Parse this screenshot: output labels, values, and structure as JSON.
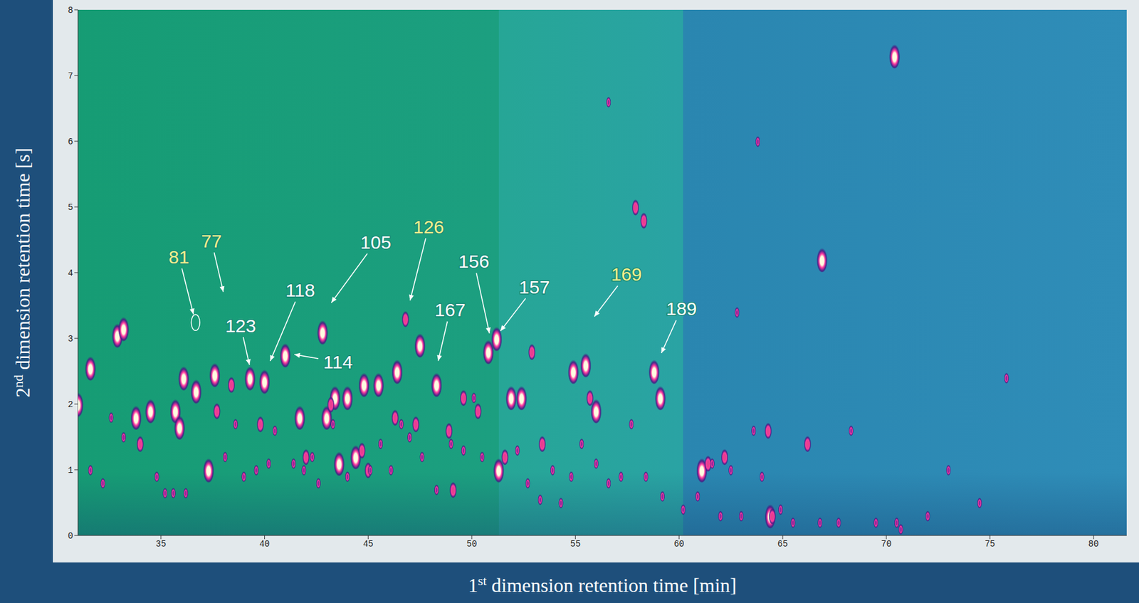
{
  "chart_data": {
    "type": "scatter",
    "x_label": "1st dimension retention time [min]",
    "y_label": "2nd dimension retention time [s]",
    "xlim": [
      31,
      81.6
    ],
    "xticks": [
      35,
      40,
      45,
      50,
      55,
      60,
      65,
      70,
      75,
      80
    ],
    "ylim": [
      0,
      8
    ],
    "yticks": [
      0,
      1,
      2,
      3,
      4,
      5,
      6,
      7,
      8
    ],
    "grid": false,
    "series": [
      {
        "color": "#fffbe0",
        "x": [
          31.0,
          31.6,
          32.9,
          33.2,
          33.8,
          34.5,
          35.7,
          35.9,
          36.1,
          36.7,
          37.3,
          37.6,
          39.3,
          40.0,
          41.0,
          41.7,
          42.8,
          43.0,
          43.4,
          44.0,
          44.8,
          43.6,
          44.4,
          45.5,
          46.4,
          47.5,
          48.3,
          50.8,
          51.2,
          51.3,
          51.9,
          52.4,
          54.9,
          55.5,
          56.0,
          58.8,
          59.1,
          61.1,
          64.4,
          66.9,
          70.4
        ],
        "y": [
          2.0,
          2.55,
          3.05,
          3.15,
          1.8,
          1.9,
          1.9,
          1.65,
          2.4,
          2.2,
          1.0,
          2.45,
          2.4,
          2.35,
          2.75,
          1.8,
          3.1,
          1.8,
          2.1,
          2.1,
          2.3,
          1.1,
          1.2,
          2.3,
          2.5,
          2.9,
          2.3,
          2.8,
          3.0,
          1.0,
          2.1,
          2.1,
          2.5,
          2.6,
          1.9,
          2.5,
          2.1,
          1.0,
          0.3,
          4.2,
          7.3
        ]
      },
      {
        "color": "#e8408f",
        "x": [
          34.0,
          37.7,
          38.4,
          39.8,
          42.0,
          43.2,
          44.7,
          46.3,
          47.3,
          48.9,
          49.6,
          50.3,
          51.6,
          52.9,
          53.4,
          55.7,
          57.9,
          58.3,
          61.4,
          62.2,
          64.3,
          64.5,
          66.2,
          49.1,
          45.0,
          46.8
        ],
        "y": [
          1.4,
          1.9,
          2.3,
          1.7,
          1.2,
          2.0,
          1.3,
          1.8,
          1.7,
          1.6,
          2.1,
          1.9,
          1.2,
          2.8,
          1.4,
          2.1,
          5.0,
          4.8,
          1.1,
          1.2,
          1.6,
          0.3,
          1.4,
          0.7,
          1.0,
          3.3
        ]
      },
      {
        "color": "#9a2a9a",
        "x": [
          31.6,
          32.2,
          32.6,
          33.2,
          34.8,
          35.2,
          35.6,
          36.2,
          38.1,
          38.6,
          39.0,
          39.6,
          40.2,
          40.5,
          41.4,
          41.9,
          42.3,
          42.6,
          43.3,
          44.0,
          45.1,
          45.6,
          46.1,
          46.6,
          47.0,
          47.6,
          48.3,
          49.0,
          49.6,
          50.1,
          50.5,
          52.2,
          52.7,
          53.3,
          53.9,
          54.3,
          54.8,
          55.3,
          56.0,
          56.6,
          57.2,
          57.7,
          58.4,
          59.2,
          60.2,
          60.9,
          61.6,
          62.0,
          62.5,
          63.0,
          63.6,
          64.0,
          64.9,
          65.5,
          66.8,
          67.7,
          68.3,
          69.5,
          70.5,
          70.7,
          72.0,
          73.0,
          74.5,
          75.8,
          62.8,
          56.6,
          63.8
        ],
        "y": [
          1.0,
          0.8,
          1.8,
          1.5,
          0.9,
          0.65,
          0.65,
          0.65,
          1.2,
          1.7,
          0.9,
          1.0,
          1.1,
          1.6,
          1.1,
          1.0,
          1.2,
          0.8,
          1.7,
          0.9,
          1.0,
          1.4,
          1.0,
          1.7,
          1.5,
          1.2,
          0.7,
          1.4,
          1.3,
          2.1,
          1.2,
          1.3,
          0.8,
          0.55,
          1.0,
          0.5,
          0.9,
          1.4,
          1.1,
          0.8,
          0.9,
          1.7,
          0.9,
          0.6,
          0.4,
          0.6,
          1.1,
          0.3,
          1.0,
          0.3,
          1.6,
          0.9,
          0.4,
          0.2,
          0.2,
          0.2,
          1.6,
          0.2,
          0.2,
          0.1,
          0.3,
          1.0,
          0.5,
          2.4,
          3.4,
          6.6,
          6.0
        ]
      }
    ],
    "annotations": [
      {
        "text": "81",
        "x": 36.67,
        "y": 3.24,
        "color": "#f5ef8c",
        "marker": "ellipse"
      },
      {
        "text": "77",
        "x": 38.03,
        "y": 3.68,
        "color": "#f5ef8c"
      },
      {
        "text": "123",
        "x": 39.29,
        "y": 2.57,
        "color": "#ffffff"
      },
      {
        "text": "118",
        "x": 40.24,
        "y": 2.63,
        "color": "#ffffff"
      },
      {
        "text": "114",
        "x": 41.35,
        "y": 2.76,
        "color": "#ffffff"
      },
      {
        "text": "105",
        "x": 43.17,
        "y": 3.52,
        "color": "#ffffff"
      },
      {
        "text": "126",
        "x": 47.0,
        "y": 3.55,
        "color": "#f5ef8c"
      },
      {
        "text": "156",
        "x": 50.87,
        "y": 3.05,
        "color": "#ffffff"
      },
      {
        "text": "157",
        "x": 51.33,
        "y": 3.09,
        "color": "#ffffff"
      },
      {
        "text": "167",
        "x": 48.36,
        "y": 2.63,
        "color": "#ffffff"
      },
      {
        "text": "169",
        "x": 55.86,
        "y": 3.31,
        "color": "#f5ef8c"
      },
      {
        "text": "189",
        "x": 59.11,
        "y": 2.75,
        "color": "#ffffff"
      }
    ]
  }
}
